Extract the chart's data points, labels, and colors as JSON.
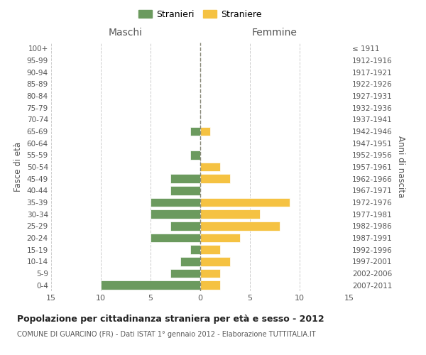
{
  "age_groups": [
    "0-4",
    "5-9",
    "10-14",
    "15-19",
    "20-24",
    "25-29",
    "30-34",
    "35-39",
    "40-44",
    "45-49",
    "50-54",
    "55-59",
    "60-64",
    "65-69",
    "70-74",
    "75-79",
    "80-84",
    "85-89",
    "90-94",
    "95-99",
    "100+"
  ],
  "birth_years": [
    "2007-2011",
    "2002-2006",
    "1997-2001",
    "1992-1996",
    "1987-1991",
    "1982-1986",
    "1977-1981",
    "1972-1976",
    "1967-1971",
    "1962-1966",
    "1957-1961",
    "1952-1956",
    "1947-1951",
    "1942-1946",
    "1937-1941",
    "1932-1936",
    "1927-1931",
    "1922-1926",
    "1917-1921",
    "1912-1916",
    "≤ 1911"
  ],
  "maschi": [
    10,
    3,
    2,
    1,
    5,
    3,
    5,
    5,
    3,
    3,
    0,
    1,
    0,
    1,
    0,
    0,
    0,
    0,
    0,
    0,
    0
  ],
  "femmine": [
    2,
    2,
    3,
    2,
    4,
    8,
    6,
    9,
    0,
    3,
    2,
    0,
    0,
    1,
    0,
    0,
    0,
    0,
    0,
    0,
    0
  ],
  "maschi_color": "#6b9a5e",
  "femmine_color": "#f5c242",
  "title": "Popolazione per cittadinanza straniera per età e sesso - 2012",
  "subtitle": "COMUNE DI GUARCINO (FR) - Dati ISTAT 1° gennaio 2012 - Elaborazione TUTTITALIA.IT",
  "xlabel_left": "Maschi",
  "xlabel_right": "Femmine",
  "ylabel_left": "Fasce di età",
  "ylabel_right": "Anni di nascita",
  "legend_maschi": "Stranieri",
  "legend_femmine": "Straniere",
  "xlim": 15,
  "background_color": "#ffffff",
  "grid_color": "#cccccc",
  "tick_color": "#888888",
  "label_color": "#555555"
}
